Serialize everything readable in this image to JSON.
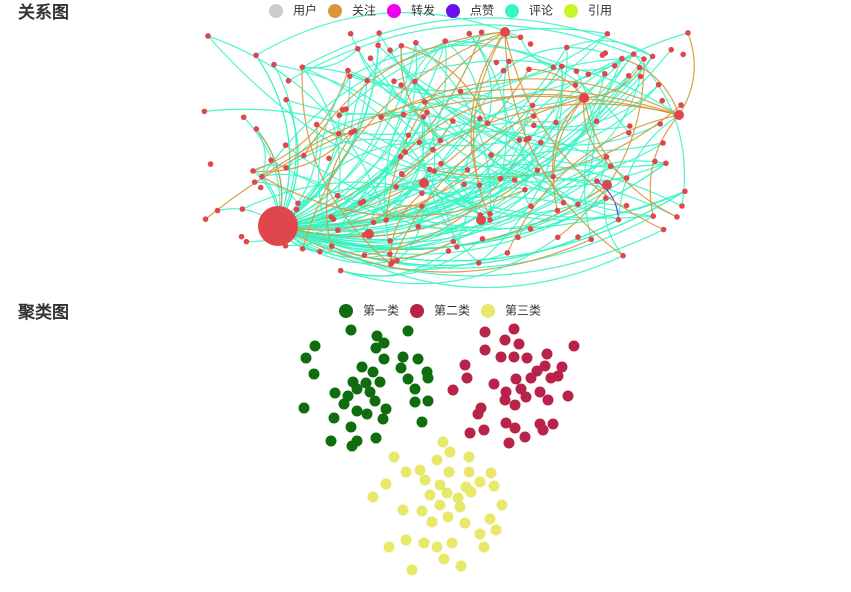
{
  "chart_data": [
    {
      "type": "graph",
      "title": "关系图",
      "series": [
        {
          "name": "用户",
          "color": "#cccccc"
        },
        {
          "name": "关注",
          "color": "#d7963d"
        },
        {
          "name": "转发",
          "color": "#ee00ee"
        },
        {
          "name": "点赞",
          "color": "#6a0ff0"
        },
        {
          "name": "评论",
          "color": "#3af5c4"
        },
        {
          "name": "引用",
          "color": "#c5f52a"
        }
      ]
    },
    {
      "type": "scatter",
      "title": "聚类图",
      "series": [
        {
          "name": "第一类",
          "color": "#0f6d0f",
          "x": [
            351,
            377,
            408,
            315,
            384,
            376,
            306,
            403,
            384,
            418,
            362,
            314,
            373,
            401,
            427,
            428,
            353,
            366,
            380,
            408,
            335,
            357,
            348,
            370,
            415,
            344,
            375,
            304,
            357,
            386,
            415,
            428,
            334,
            367,
            383,
            422,
            351,
            331,
            357,
            376,
            352
          ],
          "y": [
            330,
            336,
            331,
            346,
            343,
            348,
            358,
            357,
            359,
            359,
            367,
            374,
            372,
            368,
            372,
            378,
            382,
            383,
            382,
            379,
            393,
            389,
            396,
            392,
            389,
            404,
            401,
            408,
            411,
            409,
            402,
            401,
            418,
            414,
            419,
            422,
            427,
            441,
            441,
            438,
            446
          ]
        },
        {
          "name": "第二类",
          "color": "#b8234a",
          "x": [
            485,
            514,
            505,
            519,
            485,
            574,
            501,
            514,
            527,
            547,
            465,
            545,
            562,
            537,
            467,
            494,
            516,
            531,
            551,
            558,
            453,
            506,
            521,
            540,
            568,
            505,
            526,
            481,
            515,
            548,
            478,
            506,
            515,
            540,
            553,
            470,
            484,
            525,
            509,
            543
          ],
          "y": [
            332,
            329,
            340,
            344,
            350,
            346,
            357,
            357,
            358,
            354,
            365,
            366,
            367,
            371,
            378,
            384,
            379,
            378,
            378,
            376,
            390,
            392,
            389,
            392,
            396,
            400,
            397,
            408,
            405,
            400,
            414,
            423,
            428,
            424,
            424,
            433,
            430,
            437,
            443,
            430
          ]
        },
        {
          "name": "第三类",
          "color": "#e8e86a",
          "x": [
            443,
            450,
            394,
            437,
            469,
            406,
            420,
            449,
            469,
            491,
            386,
            425,
            440,
            466,
            480,
            494,
            373,
            430,
            447,
            458,
            471,
            403,
            422,
            440,
            460,
            502,
            432,
            448,
            465,
            490,
            480,
            496,
            406,
            424,
            437,
            452,
            484,
            389,
            444,
            461,
            412
          ],
          "y": [
            442,
            452,
            457,
            460,
            457,
            472,
            470,
            472,
            472,
            473,
            484,
            480,
            485,
            487,
            482,
            486,
            497,
            495,
            493,
            498,
            492,
            510,
            511,
            505,
            507,
            505,
            522,
            517,
            523,
            519,
            534,
            530,
            540,
            543,
            547,
            543,
            547,
            547,
            559,
            566,
            570
          ]
        }
      ]
    }
  ]
}
